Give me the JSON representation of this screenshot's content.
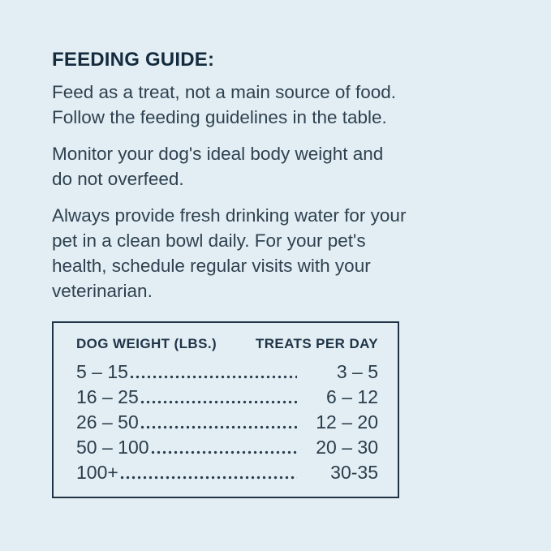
{
  "page": {
    "background_color": "#e2eef3",
    "text_color": "#2f4150",
    "heading_color": "#142c3e",
    "table_border_color": "#1f3345"
  },
  "guide": {
    "heading": "FEEDING GUIDE:",
    "paragraphs": [
      "Feed as a treat, not a main source of food.\nFollow the feeding guidelines in the table.",
      "Monitor your dog's ideal body weight and\ndo not overfeed.",
      "Always provide fresh drinking water for your\npet in a clean bowl daily. For your pet's\nhealth, schedule regular visits with your\nveterinarian."
    ]
  },
  "table": {
    "headers": [
      "DOG WEIGHT (LBS.)",
      "TREATS PER DAY"
    ],
    "rows": [
      {
        "weight": "5 – 15",
        "treats": "3 – 5"
      },
      {
        "weight": "16 – 25",
        "treats": "6 – 12"
      },
      {
        "weight": "26 – 50",
        "treats": "12 – 20"
      },
      {
        "weight": "50 – 100",
        "treats": "20 – 30"
      },
      {
        "weight": "100+",
        "treats": "30-35"
      }
    ]
  }
}
